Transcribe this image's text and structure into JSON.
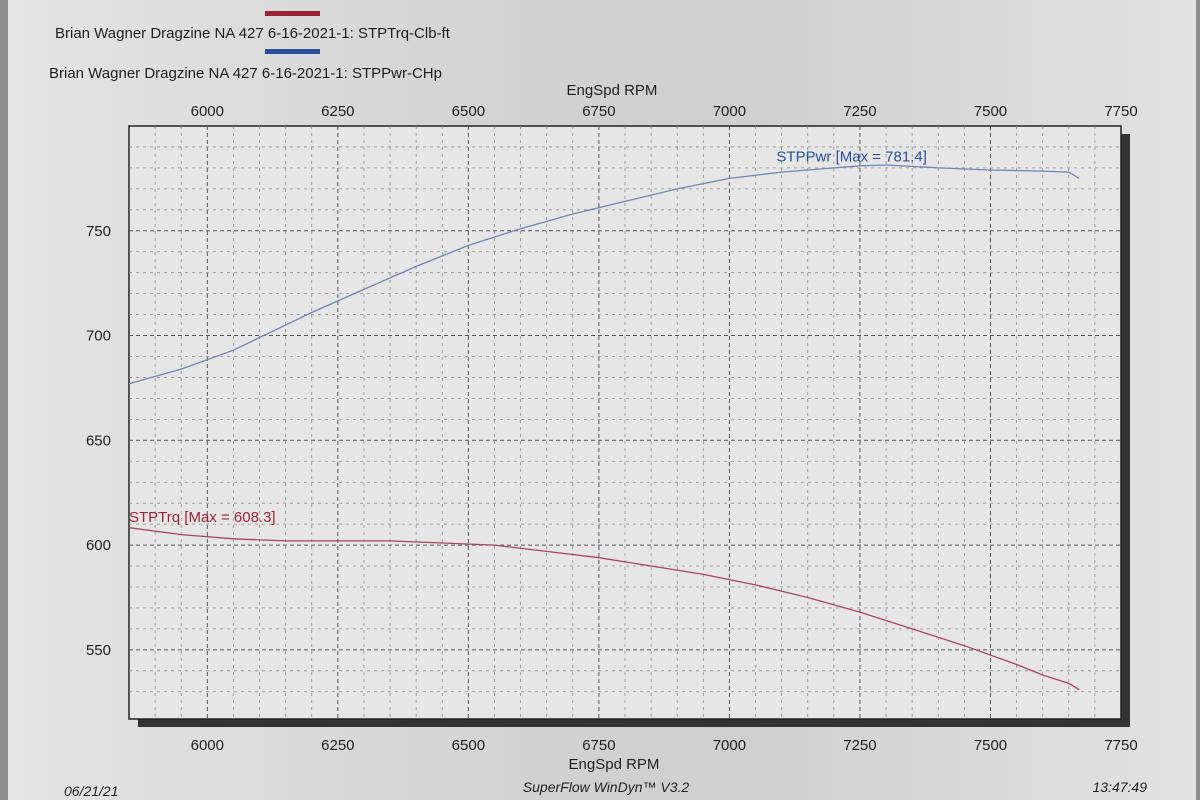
{
  "chart_data": {
    "type": "line",
    "legend": [
      {
        "label": "Brian Wagner Dragzine NA 427 6-16-2021-1: STPTrq-Clb-ft",
        "color": "#9b2335"
      },
      {
        "label": "Brian Wagner Dragzine NA 427 6-16-2021-1: STPPwr-CHp",
        "color": "#2a4f9c"
      }
    ],
    "xlabel": "EngSpd RPM",
    "xlim": [
      5850,
      7750
    ],
    "ylim": [
      517,
      800
    ],
    "x_ticks": [
      "6000",
      "6250",
      "6500",
      "6750",
      "7000",
      "7250",
      "7500",
      "7750"
    ],
    "y_ticks": [
      "550",
      "600",
      "650",
      "700",
      "750"
    ],
    "grid": true,
    "series": [
      {
        "name": "STPPwr",
        "color": "#6d86b8",
        "x": [
          5850,
          5950,
          6050,
          6100,
          6200,
          6300,
          6400,
          6500,
          6600,
          6700,
          6800,
          6900,
          7000,
          7100,
          7200,
          7250,
          7300,
          7400,
          7500,
          7600,
          7650,
          7670
        ],
        "values": [
          677,
          684,
          693,
          699,
          711,
          722,
          733,
          743,
          751,
          758,
          764,
          770,
          775,
          778,
          780,
          781,
          781.4,
          780,
          779,
          778.5,
          778,
          775
        ]
      },
      {
        "name": "STPTrq",
        "color": "#a8465c",
        "x": [
          5850,
          5950,
          6050,
          6150,
          6250,
          6350,
          6450,
          6550,
          6650,
          6750,
          6850,
          6950,
          7050,
          7150,
          7250,
          7350,
          7450,
          7550,
          7600,
          7650,
          7670
        ],
        "values": [
          608.3,
          605,
          603,
          602,
          602,
          602,
          601,
          600,
          597,
          594,
          590,
          586,
          581,
          575,
          568,
          560,
          552,
          543,
          538,
          534,
          531
        ]
      }
    ],
    "annotations": [
      {
        "text": "STPPwr [Max = 781.4]",
        "color": "#2a4f9c",
        "x": 7090,
        "y": 783
      },
      {
        "text": "STPTrq [Max = 608.3]",
        "color": "#9b2335",
        "x": 5850,
        "y": 611
      }
    ]
  },
  "footer": {
    "date": "06/21/21",
    "software": "SuperFlow WinDyn™ V3.2",
    "time": "13:47:49"
  }
}
